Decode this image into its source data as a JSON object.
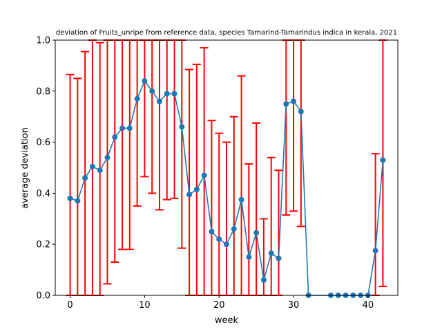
{
  "chart_data": {
    "type": "line",
    "title": "deviation of Fruits_unripe from reference data, species Tamarind-Tamarindus indica in kerala, 2021",
    "xlabel": "week",
    "ylabel": "average deviation",
    "xlim": [
      -2,
      44
    ],
    "ylim": [
      0.0,
      1.0
    ],
    "xticks": [
      0,
      10,
      20,
      30,
      40
    ],
    "yticks": [
      0.0,
      0.2,
      0.4,
      0.6,
      0.8,
      1.0
    ],
    "xtick_labels": [
      "0",
      "10",
      "20",
      "30",
      "40"
    ],
    "ytick_labels": [
      "0.0",
      "0.2",
      "0.4",
      "0.6",
      "0.8",
      "1.0"
    ],
    "grid": false,
    "colors": {
      "line": "#1f77b4",
      "errorbar": "#ff0000"
    },
    "series": [
      {
        "x": [
          0,
          1,
          2,
          3,
          4,
          5,
          6,
          7,
          8,
          9,
          10,
          11,
          12,
          13,
          14,
          15,
          16,
          17,
          18,
          19,
          20,
          21,
          22,
          23,
          24,
          25,
          26,
          27,
          28,
          29,
          30,
          31,
          32,
          35,
          36,
          37,
          38,
          39,
          40,
          41,
          42
        ],
        "y": [
          0.38,
          0.37,
          0.46,
          0.505,
          0.49,
          0.54,
          0.62,
          0.655,
          0.655,
          0.77,
          0.84,
          0.8,
          0.76,
          0.79,
          0.79,
          0.66,
          0.395,
          0.415,
          0.47,
          0.25,
          0.22,
          0.2,
          0.26,
          0.375,
          0.15,
          0.245,
          0.06,
          0.165,
          0.145,
          0.75,
          0.76,
          0.72,
          0.0,
          0.0,
          0.0,
          0.0,
          0.0,
          0.0,
          0.0,
          0.175,
          0.53
        ],
        "err_low": [
          0.0,
          0.0,
          0.0,
          0.0,
          0.0,
          0.045,
          0.13,
          0.18,
          0.18,
          0.35,
          0.465,
          0.4,
          0.335,
          0.375,
          0.38,
          0.185,
          0.0,
          0.0,
          0.0,
          0.0,
          0.0,
          0.0,
          0.0,
          0.0,
          0.0,
          0.0,
          0.0,
          0.0,
          0.0,
          0.315,
          0.33,
          0.27,
          0.0,
          0.0,
          0.0,
          0.0,
          0.0,
          0.0,
          0.0,
          0.0,
          0.035
        ],
        "err_high": [
          0.865,
          0.85,
          0.955,
          1.0,
          0.99,
          1.0,
          1.0,
          1.0,
          1.0,
          1.0,
          1.0,
          1.0,
          1.0,
          1.0,
          1.0,
          1.0,
          0.885,
          0.905,
          0.97,
          0.685,
          0.635,
          0.6,
          0.7,
          0.86,
          0.515,
          0.675,
          0.3,
          0.54,
          0.49,
          1.0,
          1.0,
          1.0,
          0.0,
          0.0,
          0.0,
          0.0,
          0.0,
          0.0,
          0.0,
          0.555,
          1.0
        ]
      }
    ]
  }
}
